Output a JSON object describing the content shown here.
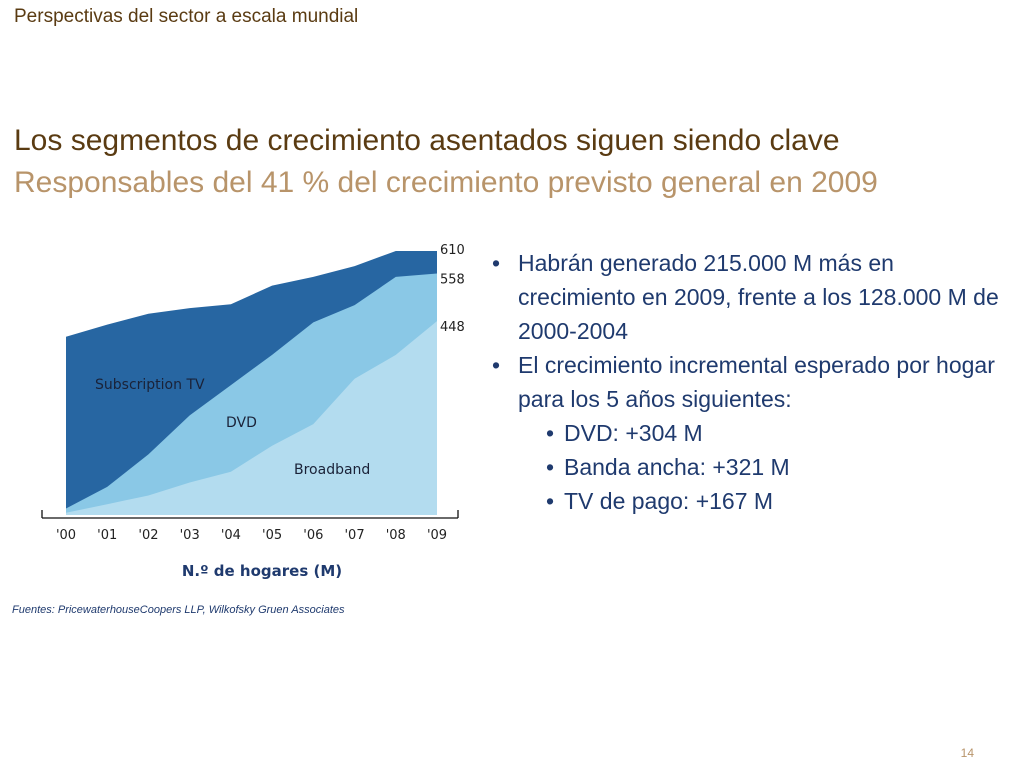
{
  "header": {
    "section_label": "Perspectivas del sector a escala mundial"
  },
  "slide": {
    "title": "Los segmentos de crecimiento asentados siguen siendo clave",
    "subtitle": "Responsables del 41 % del crecimiento previsto general en 2009",
    "page_number": "14"
  },
  "bullets": [
    {
      "text": "Habrán generado 215.000 M más en crecimiento en 2009, frente a los 128.000 M de 2000-2004",
      "level": 1
    },
    {
      "text": "El crecimiento incremental esperado por hogar para los 5 años siguientes:",
      "level": 1
    },
    {
      "text": "DVD: +304 M",
      "level": 2
    },
    {
      "text": "Banda ancha: +321 M",
      "level": 2
    },
    {
      "text": "TV de pago: +167 M",
      "level": 2
    }
  ],
  "source": "Fuentes: PricewaterhouseCoopers LLP, Wilkofsky Gruen Associates",
  "chart_data": {
    "type": "area",
    "stacked": false,
    "x": [
      "'00",
      "'01",
      "'02",
      "'03",
      "'04",
      "'05",
      "'06",
      "'07",
      "'08",
      "'09"
    ],
    "xlabel": "N.º de hogares (M)",
    "ylabel": "",
    "ylim": [
      0,
      670
    ],
    "series": [
      {
        "name": "Subscription TV",
        "color": "#2766a2",
        "values": [
          412,
          440,
          465,
          478,
          487,
          530,
          550,
          575,
          610,
          610
        ]
      },
      {
        "name": "DVD",
        "color": "#8ac8e6",
        "values": [
          15,
          65,
          140,
          230,
          300,
          370,
          445,
          485,
          550,
          558
        ]
      },
      {
        "name": "Broadband",
        "color": "#b3dcef",
        "values": [
          5,
          25,
          45,
          75,
          100,
          160,
          210,
          315,
          370,
          448
        ]
      }
    ],
    "end_labels": [
      "610",
      "558",
      "448"
    ],
    "area_labels": [
      "Subscription TV",
      "DVD",
      "Broadband"
    ],
    "grid": false,
    "legend": "inline"
  }
}
